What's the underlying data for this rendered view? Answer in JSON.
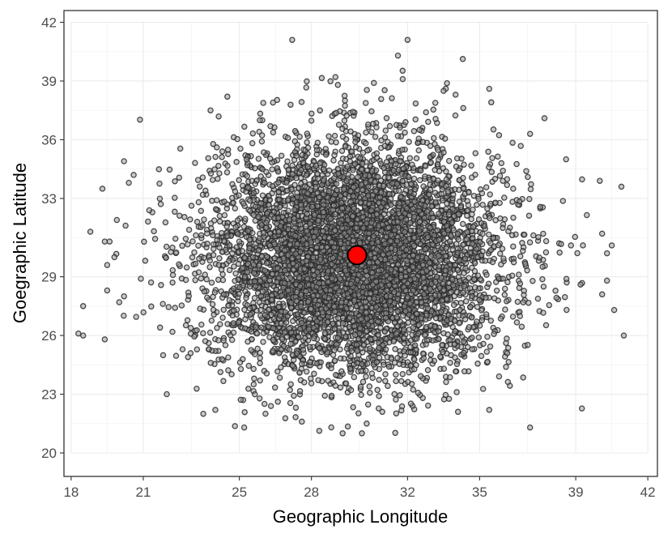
{
  "chart_data": {
    "type": "scatter",
    "xlabel": "Geographic Longitude",
    "ylabel": "Goegraphic Latitude",
    "xlim": [
      17.7,
      42.4
    ],
    "ylim": [
      18.8,
      42.6
    ],
    "x_ticks": [
      18,
      21,
      25,
      28,
      32,
      35,
      39,
      42
    ],
    "y_ticks": [
      20,
      23,
      26,
      29,
      33,
      36,
      39,
      42
    ],
    "grid": true,
    "theme": "black-and-white",
    "series": [
      {
        "kind": "cloud",
        "marker": "hollow-circle",
        "fill_color": "#9a9a9a",
        "edge_color": "#2b2b2b",
        "approx_points": 6000,
        "center": [
          29.8,
          29.9
        ],
        "sd": [
          3.0,
          2.9
        ],
        "outliers": [
          [
            27.2,
            41.1
          ],
          [
            32.0,
            41.1
          ],
          [
            31.6,
            40.3
          ],
          [
            29.0,
            39.2
          ],
          [
            31.8,
            39.1
          ],
          [
            30.6,
            38.9
          ],
          [
            29.1,
            38.8
          ],
          [
            33.5,
            38.5
          ],
          [
            34.0,
            38.3
          ],
          [
            35.4,
            38.6
          ],
          [
            24.5,
            38.2
          ],
          [
            26.4,
            37.9
          ],
          [
            37.7,
            37.1
          ],
          [
            23.8,
            37.5
          ],
          [
            37.1,
            36.3
          ],
          [
            40.9,
            33.6
          ],
          [
            40.0,
            33.9
          ],
          [
            38.6,
            35.0
          ],
          [
            19.3,
            33.5
          ],
          [
            20.2,
            34.9
          ],
          [
            20.6,
            34.2
          ],
          [
            20.4,
            33.8
          ],
          [
            19.9,
            31.9
          ],
          [
            18.8,
            31.3
          ],
          [
            19.4,
            30.8
          ],
          [
            19.6,
            30.8
          ],
          [
            19.5,
            29.6
          ],
          [
            19.8,
            30.0
          ],
          [
            18.5,
            27.5
          ],
          [
            18.3,
            26.1
          ],
          [
            18.5,
            26.0
          ],
          [
            19.4,
            25.8
          ],
          [
            19.5,
            28.3
          ],
          [
            20.2,
            28.0
          ],
          [
            20.0,
            27.7
          ],
          [
            20.9,
            28.9
          ],
          [
            40.6,
            27.3
          ],
          [
            40.1,
            28.1
          ],
          [
            40.3,
            28.8
          ],
          [
            40.3,
            30.2
          ],
          [
            40.1,
            31.2
          ],
          [
            40.5,
            30.6
          ],
          [
            39.3,
            30.6
          ],
          [
            38.8,
            30.6
          ],
          [
            39.2,
            28.6
          ],
          [
            37.1,
            21.3
          ],
          [
            30.1,
            21.0
          ],
          [
            29.3,
            21.0
          ],
          [
            25.2,
            21.3
          ],
          [
            27.6,
            21.6
          ],
          [
            30.3,
            21.5
          ],
          [
            23.5,
            22.0
          ],
          [
            24.0,
            22.2
          ],
          [
            35.4,
            22.2
          ],
          [
            34.1,
            22.1
          ]
        ]
      },
      {
        "kind": "highlight",
        "marker": "filled-circle",
        "color": "#ff0000",
        "edge_color": "#000000",
        "points": [
          [
            29.9,
            30.1
          ]
        ]
      }
    ]
  }
}
